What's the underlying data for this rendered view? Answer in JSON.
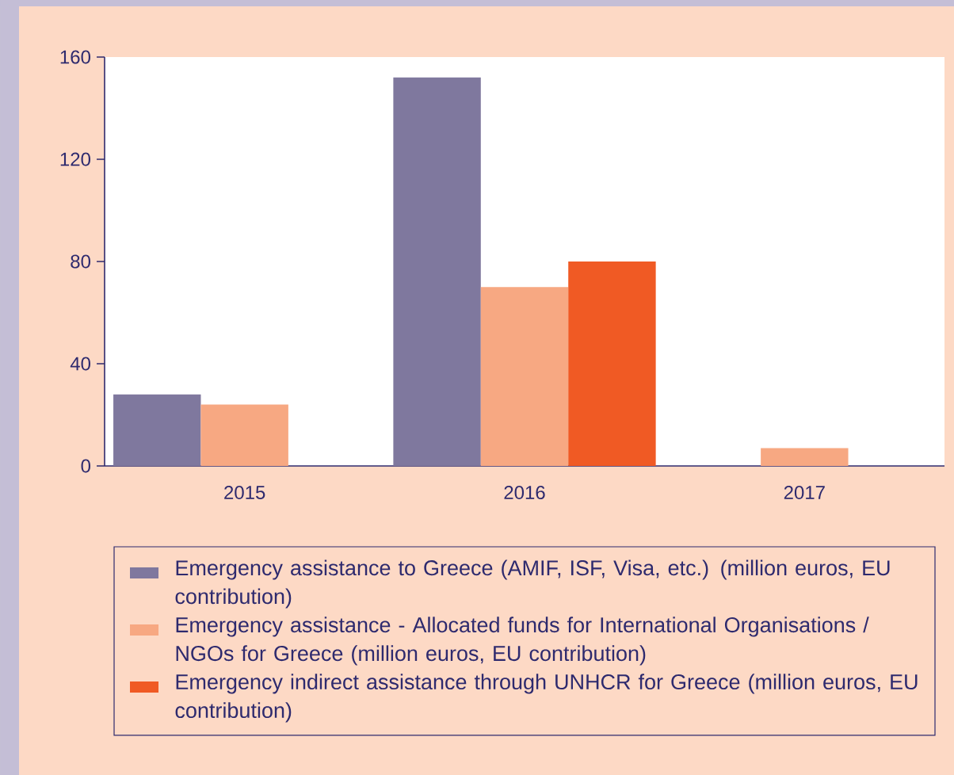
{
  "chart_data": {
    "type": "bar",
    "categories": [
      "2015",
      "2016",
      "2017"
    ],
    "series": [
      {
        "name": "Emergency assistance to Greece (AMIF, ISF, Visa, etc.) (million euros, EU contribution)",
        "color": "#7f789e",
        "values": [
          28,
          152,
          null
        ]
      },
      {
        "name": "Emergency assistance - Allocated funds for International Organisations / NGOs for Greece (million euros, EU contribution)",
        "color": "#f7a882",
        "values": [
          24,
          70,
          7
        ]
      },
      {
        "name": "Emergency indirect assistance through UNHCR for Greece (million euros, EU contribution)",
        "color": "#f05a24",
        "values": [
          null,
          80,
          null
        ]
      }
    ],
    "ylim": [
      0,
      160
    ],
    "yticks": [
      0,
      40,
      80,
      120,
      160
    ],
    "legend": "bottom"
  }
}
